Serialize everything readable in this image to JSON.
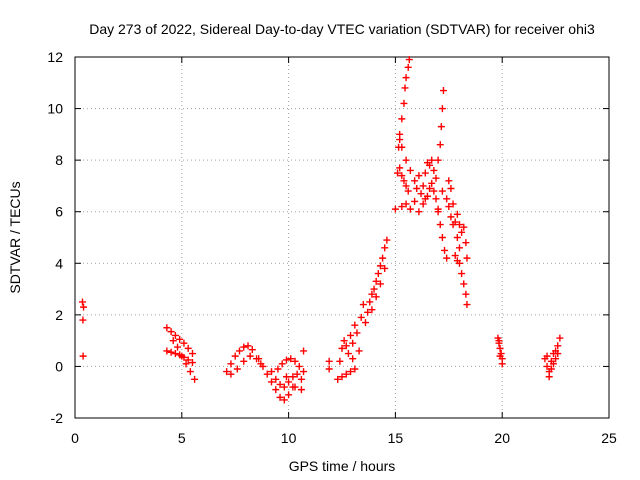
{
  "chart_data": {
    "type": "scatter",
    "title": "Day 273 of 2022, Sidereal Day-to-day VTEC variation (SDTVAR) for receiver ohi3",
    "xlabel": "GPS time / hours",
    "ylabel": "SDTVAR / TECUs",
    "xlim": [
      0,
      25
    ],
    "ylim": [
      -2,
      12
    ],
    "xticks": [
      0,
      5,
      10,
      15,
      20,
      25
    ],
    "yticks": [
      -2,
      0,
      2,
      4,
      6,
      8,
      10,
      12
    ],
    "xtick_labels": [
      "0",
      "5",
      "10",
      "15",
      "20",
      "25"
    ],
    "ytick_labels": [
      "-2",
      "0",
      "2",
      "4",
      "6",
      "8",
      "10",
      "12"
    ],
    "grid": true,
    "marker": "+",
    "marker_color": "#ff0000",
    "series": [
      {
        "name": "SDTVAR",
        "points": [
          [
            0.35,
            2.5
          ],
          [
            0.4,
            2.3
          ],
          [
            0.37,
            1.8
          ],
          [
            0.38,
            0.4
          ],
          [
            4.3,
            1.5
          ],
          [
            4.5,
            1.35
          ],
          [
            4.7,
            1.2
          ],
          [
            4.9,
            1.05
          ],
          [
            5.1,
            0.9
          ],
          [
            5.3,
            0.7
          ],
          [
            5.5,
            0.5
          ],
          [
            4.3,
            0.6
          ],
          [
            4.5,
            0.55
          ],
          [
            4.7,
            0.5
          ],
          [
            4.9,
            0.45
          ],
          [
            5.1,
            0.35
          ],
          [
            5.3,
            0.25
          ],
          [
            5.5,
            0.15
          ],
          [
            4.6,
            1.0
          ],
          [
            4.8,
            0.75
          ],
          [
            5.0,
            0.4
          ],
          [
            5.2,
            0.1
          ],
          [
            5.4,
            -0.2
          ],
          [
            5.6,
            -0.5
          ],
          [
            7.1,
            -0.2
          ],
          [
            7.3,
            0.1
          ],
          [
            7.5,
            0.4
          ],
          [
            7.7,
            0.6
          ],
          [
            7.9,
            0.75
          ],
          [
            8.1,
            0.8
          ],
          [
            8.3,
            0.65
          ],
          [
            7.3,
            -0.3
          ],
          [
            7.6,
            -0.1
          ],
          [
            7.9,
            0.2
          ],
          [
            8.2,
            0.4
          ],
          [
            8.5,
            0.3
          ],
          [
            8.7,
            0.1
          ],
          [
            8.6,
            0.3
          ],
          [
            8.8,
            0.0
          ],
          [
            9.0,
            -0.3
          ],
          [
            9.2,
            -0.6
          ],
          [
            9.4,
            -0.9
          ],
          [
            9.6,
            -1.2
          ],
          [
            9.8,
            -1.3
          ],
          [
            10.0,
            -1.1
          ],
          [
            10.2,
            -0.8
          ],
          [
            9.2,
            -0.2
          ],
          [
            9.4,
            -0.5
          ],
          [
            9.6,
            -0.7
          ],
          [
            9.8,
            -0.8
          ],
          [
            10.0,
            -0.6
          ],
          [
            10.2,
            -0.4
          ],
          [
            10.4,
            -0.3
          ],
          [
            10.6,
            -0.5
          ],
          [
            9.7,
            0.1
          ],
          [
            9.9,
            0.25
          ],
          [
            10.1,
            0.3
          ],
          [
            10.3,
            0.2
          ],
          [
            10.5,
            0.0
          ],
          [
            10.7,
            -0.2
          ],
          [
            9.5,
            -0.1
          ],
          [
            9.9,
            -0.4
          ],
          [
            10.3,
            -0.8
          ],
          [
            10.6,
            -0.9
          ],
          [
            10.7,
            0.6
          ],
          [
            11.9,
            0.2
          ],
          [
            11.9,
            -0.1
          ],
          [
            12.3,
            -0.5
          ],
          [
            12.5,
            -0.4
          ],
          [
            12.7,
            -0.3
          ],
          [
            12.9,
            -0.2
          ],
          [
            13.1,
            -0.1
          ],
          [
            12.4,
            0.2
          ],
          [
            12.5,
            0.7
          ],
          [
            12.6,
            1.0
          ],
          [
            12.8,
            0.5
          ],
          [
            12.9,
            1.2
          ],
          [
            13.0,
            0.9
          ],
          [
            13.1,
            1.6
          ],
          [
            13.2,
            1.3
          ],
          [
            12.7,
            0.8
          ],
          [
            13.0,
            0.3
          ],
          [
            13.3,
            0.6
          ],
          [
            13.4,
            1.9
          ],
          [
            13.5,
            2.4
          ],
          [
            13.6,
            1.7
          ],
          [
            13.7,
            2.1
          ],
          [
            13.8,
            2.5
          ],
          [
            13.9,
            2.8
          ],
          [
            14.0,
            3.0
          ],
          [
            14.1,
            3.3
          ],
          [
            14.2,
            3.6
          ],
          [
            14.3,
            3.9
          ],
          [
            14.4,
            4.2
          ],
          [
            14.5,
            4.6
          ],
          [
            14.6,
            4.9
          ],
          [
            13.9,
            2.2
          ],
          [
            14.1,
            2.7
          ],
          [
            14.3,
            3.2
          ],
          [
            14.5,
            3.8
          ],
          [
            15.0,
            6.1
          ],
          [
            15.1,
            7.5
          ],
          [
            15.15,
            8.5
          ],
          [
            15.2,
            9.0
          ],
          [
            15.3,
            9.6
          ],
          [
            15.4,
            10.2
          ],
          [
            15.45,
            10.8
          ],
          [
            15.5,
            11.2
          ],
          [
            15.6,
            11.6
          ],
          [
            15.65,
            11.9
          ],
          [
            15.2,
            7.7
          ],
          [
            15.3,
            7.4
          ],
          [
            15.4,
            7.2
          ],
          [
            15.5,
            7.0
          ],
          [
            15.6,
            6.8
          ],
          [
            15.2,
            8.8
          ],
          [
            15.3,
            8.5
          ],
          [
            15.5,
            8.0
          ],
          [
            15.7,
            7.6
          ],
          [
            15.3,
            6.2
          ],
          [
            15.5,
            6.3
          ],
          [
            15.7,
            6.1
          ],
          [
            15.9,
            6.4
          ],
          [
            16.1,
            6.0
          ],
          [
            16.3,
            6.3
          ],
          [
            15.9,
            7.2
          ],
          [
            16.0,
            6.9
          ],
          [
            16.1,
            7.4
          ],
          [
            16.2,
            6.7
          ],
          [
            16.3,
            7.0
          ],
          [
            16.4,
            6.5
          ],
          [
            16.4,
            7.5
          ],
          [
            16.5,
            7.9
          ],
          [
            16.6,
            7.8
          ],
          [
            16.7,
            8.0
          ],
          [
            16.8,
            7.6
          ],
          [
            16.9,
            7.3
          ],
          [
            16.5,
            6.6
          ],
          [
            16.6,
            6.9
          ],
          [
            16.7,
            7.1
          ],
          [
            16.8,
            6.8
          ],
          [
            16.9,
            6.5
          ],
          [
            17.0,
            6.1
          ],
          [
            17.0,
            8.0
          ],
          [
            17.1,
            8.6
          ],
          [
            17.15,
            9.3
          ],
          [
            17.2,
            10.0
          ],
          [
            17.25,
            10.7
          ],
          [
            17.0,
            6.0
          ],
          [
            17.1,
            5.5
          ],
          [
            17.2,
            5.0
          ],
          [
            17.3,
            4.5
          ],
          [
            17.4,
            4.2
          ],
          [
            17.2,
            6.8
          ],
          [
            17.4,
            6.5
          ],
          [
            17.5,
            6.2
          ],
          [
            17.6,
            5.8
          ],
          [
            17.7,
            5.5
          ],
          [
            17.5,
            7.2
          ],
          [
            17.6,
            6.9
          ],
          [
            17.7,
            6.3
          ],
          [
            17.8,
            5.6
          ],
          [
            17.9,
            5.0
          ],
          [
            18.0,
            4.6
          ],
          [
            17.8,
            4.3
          ],
          [
            17.9,
            4.1
          ],
          [
            18.0,
            4.0
          ],
          [
            18.1,
            3.6
          ],
          [
            18.2,
            3.2
          ],
          [
            18.3,
            2.8
          ],
          [
            18.35,
            2.4
          ],
          [
            17.9,
            5.9
          ],
          [
            18.0,
            5.5
          ],
          [
            18.1,
            5.2
          ],
          [
            18.2,
            5.4
          ],
          [
            18.3,
            4.8
          ],
          [
            18.35,
            4.2
          ],
          [
            19.8,
            1.1
          ],
          [
            19.85,
            0.9
          ],
          [
            19.9,
            0.7
          ],
          [
            19.95,
            0.5
          ],
          [
            20.0,
            0.3
          ],
          [
            19.85,
            1.0
          ],
          [
            19.9,
            0.4
          ],
          [
            20.0,
            0.1
          ],
          [
            22.0,
            0.3
          ],
          [
            22.1,
            0.0
          ],
          [
            22.2,
            -0.2
          ],
          [
            22.3,
            0.2
          ],
          [
            22.4,
            0.5
          ],
          [
            22.5,
            0.6
          ],
          [
            22.6,
            0.8
          ],
          [
            22.7,
            1.1
          ],
          [
            22.1,
            0.4
          ],
          [
            22.2,
            -0.4
          ],
          [
            22.3,
            -0.1
          ],
          [
            22.4,
            0.1
          ],
          [
            22.5,
            0.3
          ],
          [
            22.6,
            0.5
          ]
        ]
      }
    ]
  }
}
